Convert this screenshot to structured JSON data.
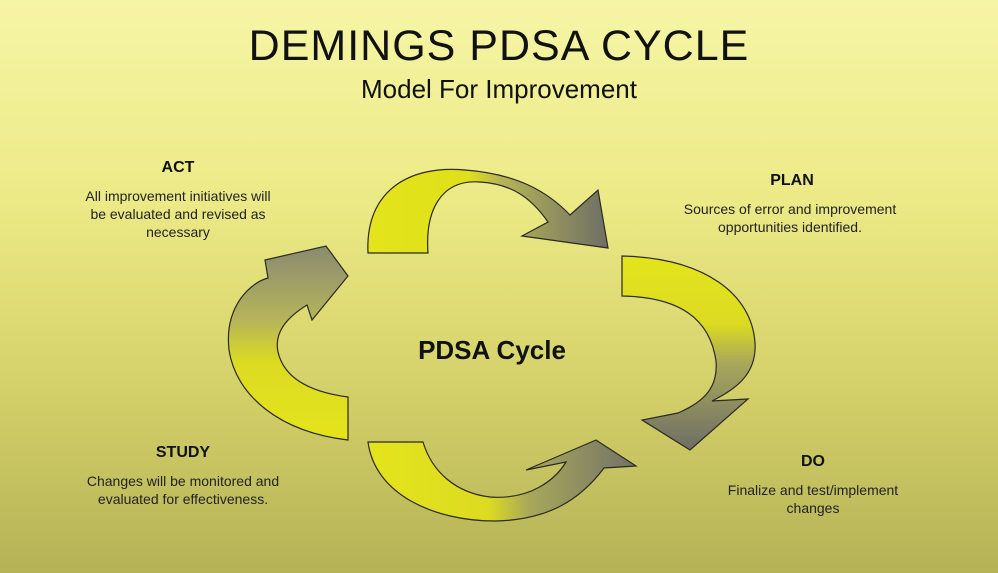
{
  "title": "DEMINGS PDSA CYCLE",
  "subtitle": "Model For Improvement",
  "center": "PDSA Cycle",
  "colors": {
    "arrow_yellow": "#e2e21a",
    "arrow_gray": "#7c7c70",
    "background": "#efee92"
  },
  "stages": {
    "act": {
      "heading": "ACT",
      "lines": [
        "All improvement initiatives will",
        "be evaluated and revised as",
        "necessary"
      ]
    },
    "plan": {
      "heading": "PLAN",
      "lines": [
        "Sources of error and improvement",
        "opportunities identified."
      ]
    },
    "study": {
      "heading": "STUDY",
      "lines": [
        "Changes will be monitored and",
        "evaluated for effectiveness."
      ]
    },
    "do": {
      "heading": "DO",
      "lines": [
        "Finalize and test/implement",
        "changes"
      ]
    }
  }
}
